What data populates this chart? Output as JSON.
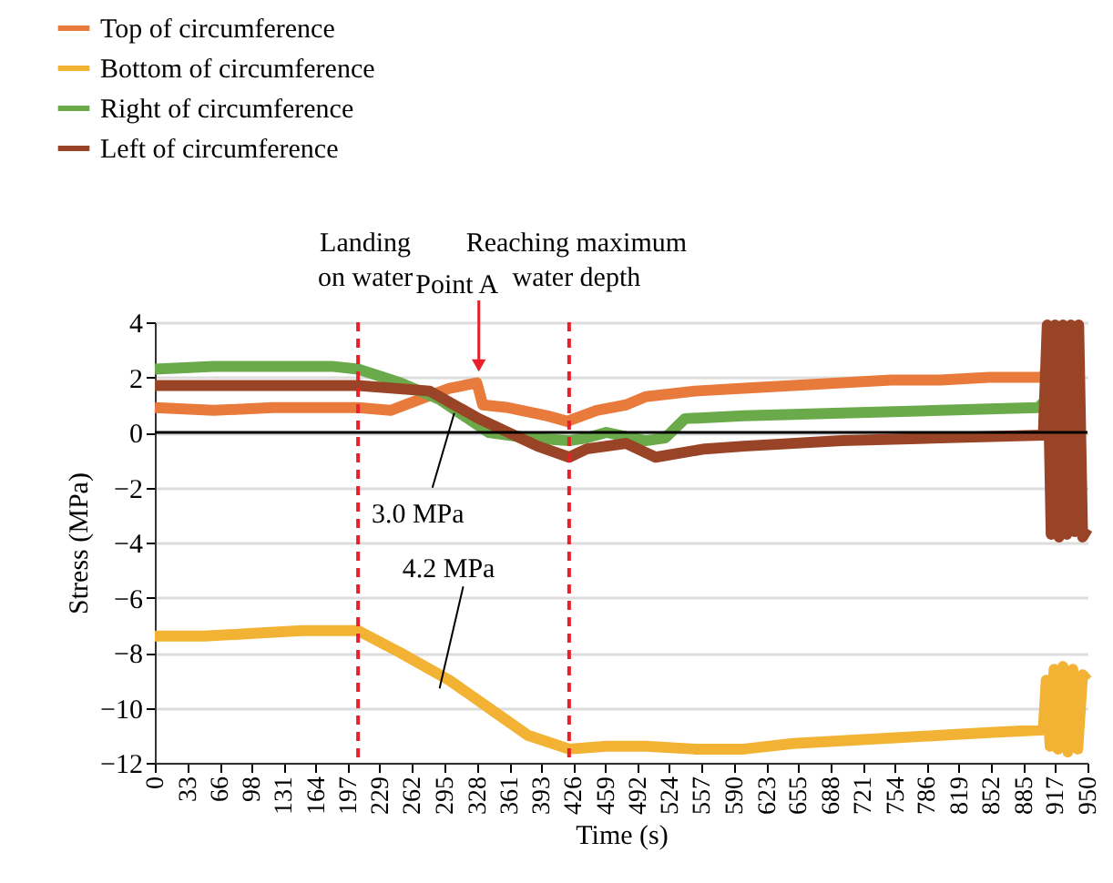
{
  "chart_data": {
    "type": "line",
    "xlabel": "Time (s)",
    "ylabel": "Stress (MPa)",
    "xlim": [
      0,
      950
    ],
    "ylim": [
      -12,
      4
    ],
    "xticks": [
      0,
      33,
      66,
      98,
      131,
      164,
      197,
      229,
      262,
      295,
      328,
      361,
      393,
      426,
      459,
      492,
      524,
      557,
      590,
      623,
      655,
      688,
      721,
      754,
      786,
      819,
      852,
      885,
      917,
      950
    ],
    "yticks": [
      -12,
      -10,
      -8,
      -6,
      -4,
      -2,
      0,
      2,
      4
    ],
    "grid": "y",
    "legend": "top left",
    "marker": "none",
    "line_style": "solid",
    "series": [
      {
        "name": "Top of circumference",
        "color": "#e87a3c",
        "x": [
          0,
          60,
          120,
          180,
          207,
          240,
          270,
          300,
          328,
          334,
          360,
          400,
          420,
          450,
          480,
          500,
          550,
          600,
          650,
          700,
          750,
          800,
          850,
          905,
          910
        ],
        "values": [
          0.9,
          0.8,
          0.9,
          0.9,
          0.9,
          0.8,
          1.2,
          1.6,
          1.8,
          1.0,
          0.9,
          0.6,
          0.4,
          0.8,
          1.0,
          1.3,
          1.5,
          1.6,
          1.7,
          1.8,
          1.9,
          1.9,
          2.0,
          2.0,
          2.5
        ]
      },
      {
        "name": "Bottom of circumference",
        "color": "#f2b335",
        "x": [
          0,
          50,
          100,
          150,
          207,
          250,
          300,
          340,
          380,
          422,
          460,
          500,
          550,
          600,
          650,
          700,
          750,
          800,
          850,
          905,
          908,
          912,
          916,
          920,
          925,
          930,
          935,
          940,
          945,
          950
        ],
        "values": [
          -7.4,
          -7.4,
          -7.3,
          -7.2,
          -7.2,
          -8.0,
          -9.0,
          -10.0,
          -11.0,
          -11.5,
          -11.4,
          -11.4,
          -11.5,
          -11.5,
          -11.3,
          -11.2,
          -11.1,
          -11.0,
          -10.9,
          -10.8,
          -9.0,
          -11.4,
          -8.6,
          -11.5,
          -8.5,
          -11.6,
          -8.6,
          -11.5,
          -8.8,
          -9.0
        ]
      },
      {
        "name": "Right of circumference",
        "color": "#6aaa4a",
        "x": [
          0,
          60,
          120,
          180,
          207,
          250,
          290,
          340,
          380,
          422,
          440,
          460,
          500,
          520,
          540,
          600,
          700,
          800,
          900,
          908
        ],
        "values": [
          2.3,
          2.4,
          2.4,
          2.4,
          2.3,
          1.8,
          1.2,
          0.0,
          -0.2,
          -0.3,
          -0.2,
          0.0,
          -0.3,
          -0.2,
          0.5,
          0.6,
          0.7,
          0.8,
          0.9,
          1.2
        ]
      },
      {
        "name": "Left of circumference",
        "color": "#9a4427",
        "x": [
          0,
          60,
          120,
          180,
          207,
          280,
          330,
          390,
          422,
          440,
          480,
          510,
          560,
          600,
          700,
          800,
          905,
          909,
          913,
          917,
          921,
          925,
          929,
          933,
          937,
          941,
          945,
          950
        ],
        "values": [
          1.7,
          1.7,
          1.7,
          1.7,
          1.7,
          1.5,
          0.5,
          -0.5,
          -0.9,
          -0.6,
          -0.4,
          -0.9,
          -0.6,
          -0.5,
          -0.3,
          -0.2,
          -0.1,
          3.9,
          -3.7,
          3.9,
          -3.8,
          3.9,
          -3.7,
          3.9,
          -3.6,
          3.9,
          -3.8,
          -3.5
        ]
      }
    ],
    "ref_lines": [
      {
        "axis": "x",
        "value": 207,
        "label": "Landing on water",
        "color": "#e8202a",
        "line_style": "dashed"
      },
      {
        "axis": "x",
        "value": 422,
        "label": "Reaching maximum water depth",
        "color": "#e8202a",
        "line_style": "dashed"
      },
      {
        "axis": "y",
        "value": 0,
        "color": "#000000",
        "line_style": "solid"
      }
    ],
    "annotations": [
      {
        "text": "Point A",
        "x": 330,
        "y": 1.9
      },
      {
        "text": "3.0 MPa",
        "x": 305,
        "y": 0.7
      },
      {
        "text": "4.2 MPa",
        "x": 290,
        "y": -9.3
      }
    ]
  }
}
